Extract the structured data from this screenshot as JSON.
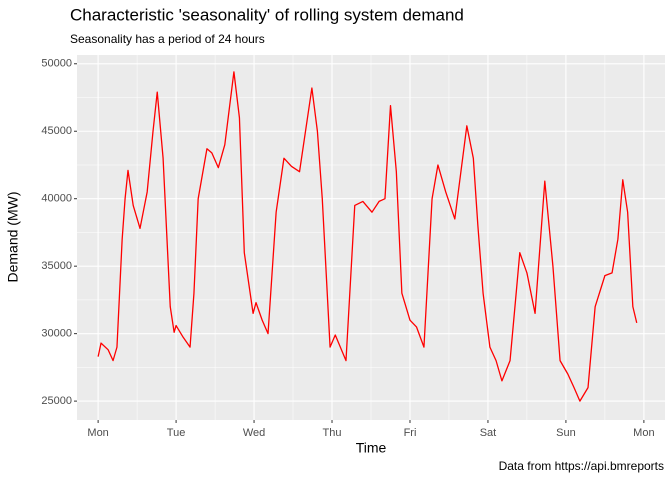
{
  "chart_data": {
    "type": "line",
    "title": "Characteristic 'seasonality' of rolling system demand",
    "subtitle": "Seasonality has a period of 24 hours",
    "x_label": "Time",
    "y_label": "Demand (MW)",
    "caption": "Data from https://api.bmreports",
    "x": [
      0,
      0.9,
      3.1,
      4.6,
      5.8,
      7.4,
      8.3,
      9.2,
      10.8,
      12.9,
      15.1,
      16.9,
      18.2,
      20,
      22.2,
      23.4,
      24,
      26,
      28.3,
      29.5,
      30.8,
      33.5,
      35,
      37,
      39,
      41.8,
      43.5,
      45,
      47.7,
      48.6,
      50.5,
      52.3,
      54.8,
      57.2,
      59.5,
      62,
      65.8,
      67.5,
      69,
      71.4,
      73,
      76.3,
      79,
      81.5,
      84.3,
      86.5,
      88.3,
      90,
      91.8,
      93.5,
      96,
      98,
      100.3,
      102.8,
      104.6,
      107,
      109.8,
      113.5,
      115.5,
      116.9,
      118.5,
      120.6,
      122.5,
      124.3,
      126.8,
      128.5,
      129.8,
      132,
      134.5,
      137.5,
      140,
      142.2,
      144.6,
      146.5,
      148.3,
      150.8,
      153,
      156,
      158.2,
      160,
      161.5,
      163,
      164.6,
      165.8
    ],
    "series": [
      {
        "name": "Demand",
        "color": "#ff0000",
        "values": [
          28300,
          29300,
          28800,
          28000,
          29000,
          37000,
          40000,
          42100,
          39500,
          37800,
          40500,
          45000,
          47900,
          43000,
          32000,
          30100,
          30600,
          29800,
          29000,
          33000,
          40000,
          43700,
          43400,
          42300,
          44000,
          49400,
          46000,
          36000,
          31500,
          32300,
          31000,
          30000,
          39000,
          43000,
          42400,
          42000,
          48200,
          45000,
          40000,
          29000,
          29900,
          28000,
          39500,
          39800,
          39000,
          39800,
          40000,
          46900,
          42000,
          33000,
          31000,
          30500,
          29000,
          40000,
          42500,
          40500,
          38500,
          45400,
          43000,
          38000,
          33000,
          29000,
          28000,
          26500,
          28000,
          32500,
          36000,
          34500,
          31500,
          41300,
          35000,
          28000,
          27000,
          26000,
          25000,
          26000,
          32000,
          34300,
          34500,
          37000,
          41400,
          39000,
          32000,
          30800
        ]
      }
    ],
    "xlim": [
      -6.5,
      174.5
    ],
    "xticks": [
      {
        "value": 0,
        "label": "Mon"
      },
      {
        "value": 24,
        "label": "Tue"
      },
      {
        "value": 48,
        "label": "Wed"
      },
      {
        "value": 72,
        "label": "Thu"
      },
      {
        "value": 96,
        "label": "Fri"
      },
      {
        "value": 120,
        "label": "Sat"
      },
      {
        "value": 144,
        "label": "Sun"
      },
      {
        "value": 168,
        "label": "Mon"
      }
    ],
    "ylim": [
      23600,
      50650
    ],
    "yticks": [
      25000,
      30000,
      35000,
      40000,
      45000,
      50000
    ],
    "grid": true
  }
}
